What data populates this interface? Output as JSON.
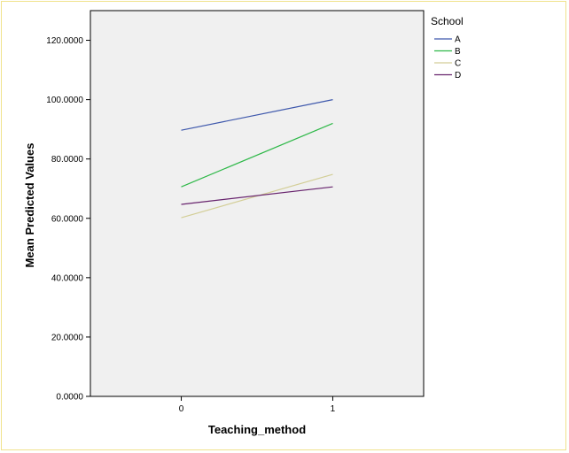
{
  "chart_data": {
    "type": "line",
    "title": "",
    "xlabel": "Teaching_method",
    "ylabel": "Mean Predicted Values",
    "x": [
      0,
      1
    ],
    "x_tick_labels": [
      "0",
      "1"
    ],
    "xlim": [
      -0.6,
      1.6
    ],
    "ylim": [
      0,
      130
    ],
    "y_ticks": [
      0,
      20,
      40,
      60,
      80,
      100,
      120
    ],
    "y_tick_labels": [
      "0.0000",
      "20.0000",
      "40.0000",
      "60.0000",
      "80.0000",
      "100.0000",
      "120.0000"
    ],
    "grid": false,
    "legend_title": "School",
    "legend_position": "top-right, outside plot",
    "plot_background": "#f0f0f0",
    "series": [
      {
        "name": "A",
        "values": [
          89.7,
          100.0
        ],
        "color": "#3e58ac"
      },
      {
        "name": "B",
        "values": [
          70.6,
          92.0
        ],
        "color": "#2eb848"
      },
      {
        "name": "C",
        "values": [
          60.2,
          74.8
        ],
        "color": "#d3ce97"
      },
      {
        "name": "D",
        "values": [
          64.7,
          70.6
        ],
        "color": "#68246e"
      }
    ]
  }
}
